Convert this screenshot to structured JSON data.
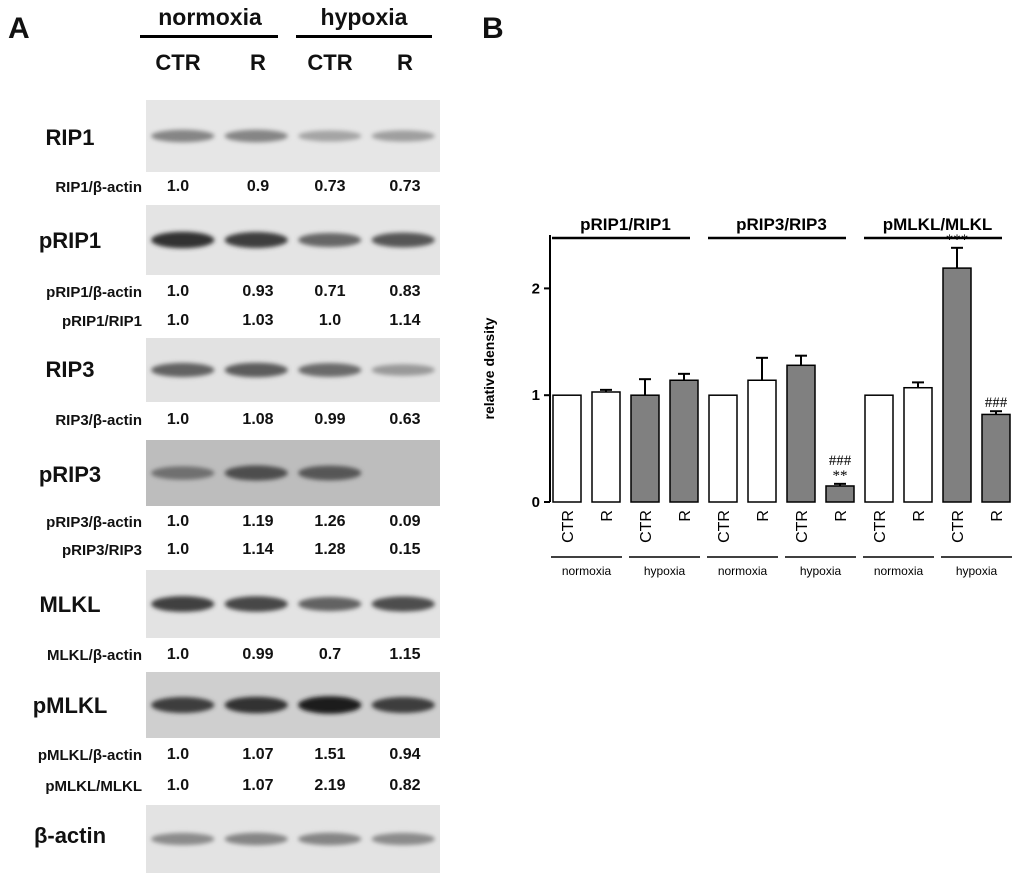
{
  "panel_a": {
    "letter": "A",
    "conditions": [
      "normoxia",
      "hypoxia"
    ],
    "lanes": [
      "CTR",
      "R",
      "CTR",
      "R"
    ],
    "blots": [
      {
        "name": "RIP1",
        "background": "#e6e6e6",
        "band_intensity": [
          0.45,
          0.45,
          0.3,
          0.32
        ],
        "quant": [
          {
            "label": "RIP1/β-actin",
            "values": [
              "1.0",
              "0.9",
              "0.73",
              "0.73"
            ]
          }
        ]
      },
      {
        "name": "pRIP1",
        "background": "#e4e4e4",
        "band_intensity": [
          0.85,
          0.8,
          0.6,
          0.68
        ],
        "quant": [
          {
            "label": "pRIP1/β-actin",
            "values": [
              "1.0",
              "0.93",
              "0.71",
              "0.83"
            ]
          },
          {
            "label": "pRIP1/RIP1",
            "values": [
              "1.0",
              "1.03",
              "1.0",
              "1.14"
            ]
          }
        ]
      },
      {
        "name": "RIP3",
        "background": "#e2e2e2",
        "band_intensity": [
          0.62,
          0.65,
          0.58,
          0.35
        ],
        "quant": [
          {
            "label": "RIP3/β-actin",
            "values": [
              "1.0",
              "1.08",
              "0.99",
              "0.63"
            ]
          }
        ]
      },
      {
        "name": "pRIP3",
        "background": "#bdbdbd",
        "band_intensity": [
          0.55,
          0.72,
          0.68,
          0.0
        ],
        "quant": [
          {
            "label": "pRIP3/β-actin",
            "values": [
              "1.0",
              "1.19",
              "1.26",
              "0.09"
            ]
          },
          {
            "label": "pRIP3/RIP3",
            "values": [
              "1.0",
              "1.14",
              "1.28",
              "0.15"
            ]
          }
        ]
      },
      {
        "name": "MLKL",
        "background": "#e3e3e3",
        "band_intensity": [
          0.78,
          0.75,
          0.62,
          0.72
        ],
        "quant": [
          {
            "label": "MLKL/β-actin",
            "values": [
              "1.0",
              "0.99",
              "0.7",
              "1.15"
            ]
          }
        ]
      },
      {
        "name": "pMLKL",
        "background": "#cfcfcf",
        "band_intensity": [
          0.8,
          0.85,
          0.95,
          0.8
        ],
        "quant": [
          {
            "label": "pMLKL/β-actin",
            "values": [
              "1.0",
              "1.07",
              "1.51",
              "0.94"
            ]
          },
          {
            "label": "pMLKL/MLKL",
            "values": [
              "1.0",
              "1.07",
              "2.19",
              "0.82"
            ]
          }
        ]
      },
      {
        "name": "β-actin",
        "background": "#e3e3e3",
        "band_intensity": [
          0.42,
          0.45,
          0.45,
          0.42
        ],
        "quant": []
      }
    ]
  },
  "panel_b": {
    "letter": "B"
  },
  "chart_data": {
    "type": "bar",
    "title": "",
    "xlabel": "",
    "ylabel": "relative density",
    "ylim": [
      0,
      2.5
    ],
    "yticks": [
      "0",
      "1",
      "2"
    ],
    "grid": false,
    "groups": [
      {
        "name": "pRIP1/RIP1",
        "bars": [
          {
            "condition": "normoxia",
            "label": "CTR",
            "value": 1.0,
            "error": 0.0,
            "annotation": "",
            "fill": "#ffffff"
          },
          {
            "condition": "normoxia",
            "label": "R",
            "value": 1.03,
            "error": 0.02,
            "annotation": "",
            "fill": "#ffffff"
          },
          {
            "condition": "hypoxia",
            "label": "CTR",
            "value": 1.0,
            "error": 0.15,
            "annotation": "",
            "fill": "#808080"
          },
          {
            "condition": "hypoxia",
            "label": "R",
            "value": 1.14,
            "error": 0.06,
            "annotation": "",
            "fill": "#808080"
          }
        ]
      },
      {
        "name": "pRIP3/RIP3",
        "bars": [
          {
            "condition": "normoxia",
            "label": "CTR",
            "value": 1.0,
            "error": 0.0,
            "annotation": "",
            "fill": "#ffffff"
          },
          {
            "condition": "normoxia",
            "label": "R",
            "value": 1.14,
            "error": 0.21,
            "annotation": "",
            "fill": "#ffffff"
          },
          {
            "condition": "hypoxia",
            "label": "CTR",
            "value": 1.28,
            "error": 0.09,
            "annotation": "",
            "fill": "#808080"
          },
          {
            "condition": "hypoxia",
            "label": "R",
            "value": 0.15,
            "error": 0.02,
            "annotation": "###\n**",
            "fill": "#808080"
          }
        ]
      },
      {
        "name": "pMLKL/MLKL",
        "bars": [
          {
            "condition": "normoxia",
            "label": "CTR",
            "value": 1.0,
            "error": 0.0,
            "annotation": "",
            "fill": "#ffffff"
          },
          {
            "condition": "normoxia",
            "label": "R",
            "value": 1.07,
            "error": 0.05,
            "annotation": "",
            "fill": "#ffffff"
          },
          {
            "condition": "hypoxia",
            "label": "CTR",
            "value": 2.19,
            "error": 0.19,
            "annotation": "***",
            "fill": "#808080"
          },
          {
            "condition": "hypoxia",
            "label": "R",
            "value": 0.82,
            "error": 0.03,
            "annotation": "###",
            "fill": "#808080"
          }
        ]
      }
    ]
  }
}
